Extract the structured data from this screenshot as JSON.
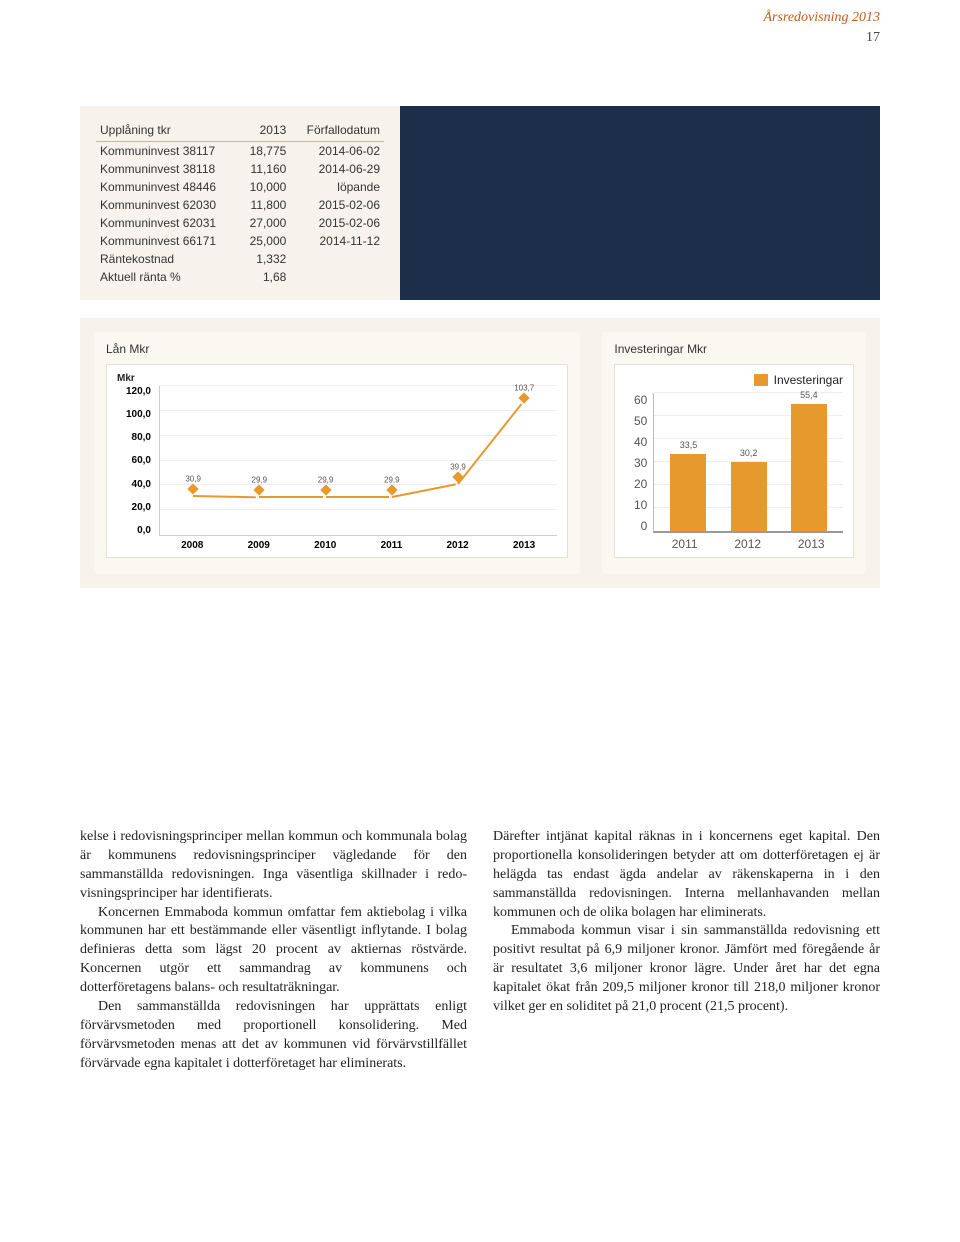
{
  "header": {
    "title": "Årsredovisning 2013",
    "page_number": "17",
    "title_color": "#c25a1a"
  },
  "table": {
    "columns": [
      "Upplåning tkr",
      "2013",
      "Förfallodatum"
    ],
    "rows": [
      [
        "Kommuninvest 38117",
        "18,775",
        "2014-06-02"
      ],
      [
        "Kommuninvest 38118",
        "11,160",
        "2014-06-29"
      ],
      [
        "Kommuninvest 48446",
        "10,000",
        "löpande"
      ],
      [
        "Kommuninvest 62030",
        "11,800",
        "2015-02-06"
      ],
      [
        "Kommuninvest 62031",
        "27,000",
        "2015-02-06"
      ],
      [
        "Kommuninvest 66171",
        "25,000",
        "2014-11-12"
      ],
      [
        "Räntekostnad",
        "1,332",
        ""
      ],
      [
        "Aktuell ränta %",
        "1,68",
        ""
      ]
    ],
    "background_color": "#f7f3ec",
    "navy_color": "#1d2e4a",
    "fontsize": 12
  },
  "line_chart": {
    "title": "Lån Mkr",
    "type": "line",
    "y_title": "Mkr",
    "ylim": [
      0,
      120
    ],
    "ytick_step": 20,
    "yticks": [
      "120,0",
      "100,0",
      "80,0",
      "60,0",
      "40,0",
      "20,0",
      "0,0"
    ],
    "categories": [
      "2008",
      "2009",
      "2010",
      "2011",
      "2012",
      "2013"
    ],
    "values": [
      30.9,
      29.9,
      29.9,
      29.9,
      39.9,
      103.7
    ],
    "point_labels": [
      "30,9",
      "29,9",
      "29,9",
      "29,9",
      "39,9",
      "103,7"
    ],
    "line_color": "#e69a2e",
    "marker_color": "#e69a2e",
    "grid_color": "#eeeeee",
    "axis_color": "#cccccc",
    "background_color": "#ffffff",
    "label_fontsize": 10
  },
  "bar_chart": {
    "title": "Investeringar Mkr",
    "type": "bar",
    "legend_label": "Investeringar",
    "ylim": [
      0,
      60
    ],
    "ytick_step": 10,
    "yticks": [
      "60",
      "50",
      "40",
      "30",
      "20",
      "10",
      "0"
    ],
    "categories": [
      "2011",
      "2012",
      "2013"
    ],
    "values": [
      33.5,
      30.2,
      55.4
    ],
    "value_labels": [
      "33,5",
      "30,2",
      "55,4"
    ],
    "bar_color": "#e69a2e",
    "grid_color": "#eeeeee",
    "axis_color": "#999999",
    "background_color": "#ffffff",
    "label_fontsize": 12
  },
  "body": {
    "col1_p1": "kelse i redovisningsprinciper mellan kommun och kommunala bolag är kommunens redovis­ningsprinciper vägledande för den sammanställda redovisningen. Inga väsentliga skillnader i redo­visningsprinciper har identifierats.",
    "col1_p2": "Koncernen Emmaboda kommun omfattar fem aktiebolag i vilka kommunen har ett bestämman­de eller väsentligt inflytande. I bolag definieras detta som lägst 20 procent av aktiernas röstvärde. Koncernen utgör ett sammandrag av kommunens och dotterföretagens balans- och resultaträkning­ar.",
    "col1_p3": "Den sammanställda redovisningen har upprät­tats enligt förvärvsmetoden med proportionell konsolidering. Med förvärvsmetoden menas att det av kommunen vid förvärvstillfället förvärvade egna kapitalet i dotterföretaget har eliminerats.",
    "col2_p1": "Därefter intjänat kapital räknas in i koncernens eget kapital. Den proportionella konsolideringen betyder att om dotterföretagen ej är helägda tas endast ägda andelar av räkenskaperna in i den sammanställda redovisningen. Interna mellanha­vanden mellan kommunen och de olika bolagen har eliminerats.",
    "col2_p2": "Emmaboda kommun visar i sin sammanställ­da redovisning ett positivt resultat på 6,9 miljo­ner kronor. Jämfört med föregående år är resulta­tet 3,6 miljoner kronor lägre. Under året har det egna kapitalet ökat från 209,5 miljoner kronor till 218,0 miljoner kronor vilket ger en soliditet på 21,0 procent (21,5 procent)."
  }
}
